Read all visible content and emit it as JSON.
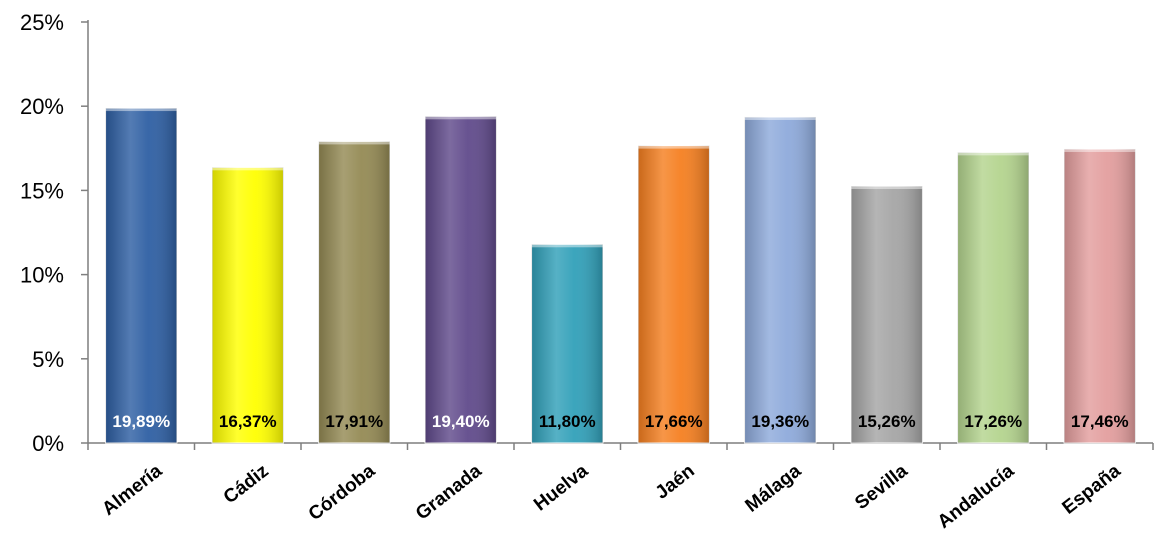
{
  "chart_data": {
    "type": "bar",
    "categories": [
      "Almería",
      "Cádiz",
      "Córdoba",
      "Granada",
      "Huelva",
      "Jaén",
      "Málaga",
      "Sevilla",
      "Andalucía",
      "España"
    ],
    "values": [
      19.89,
      16.37,
      17.91,
      19.4,
      11.8,
      17.66,
      19.36,
      15.26,
      17.26,
      17.46
    ],
    "data_labels": [
      "19,89%",
      "16,37%",
      "17,91%",
      "19,40%",
      "11,80%",
      "17,66%",
      "19,36%",
      "15,26%",
      "17,26%",
      "17,46%"
    ],
    "colors": [
      "#2e5fa3",
      "#ffff00",
      "#948a54",
      "#604a8b",
      "#31a0b9",
      "#f57f20",
      "#8eaadb",
      "#a5a5a5",
      "#b4d48e",
      "#e39e9e"
    ],
    "label_colors": [
      "#ffffff",
      "#000000",
      "#000000",
      "#ffffff",
      "#000000",
      "#000000",
      "#000000",
      "#000000",
      "#000000",
      "#000000"
    ],
    "y_ticks": [
      {
        "value": 0,
        "label": "0%"
      },
      {
        "value": 5,
        "label": "5%"
      },
      {
        "value": 10,
        "label": "10%"
      },
      {
        "value": 15,
        "label": "15%"
      },
      {
        "value": 20,
        "label": "20%"
      },
      {
        "value": 25,
        "label": "25%"
      }
    ],
    "ylim": [
      0,
      25
    ],
    "grid": false,
    "legend": "none"
  }
}
